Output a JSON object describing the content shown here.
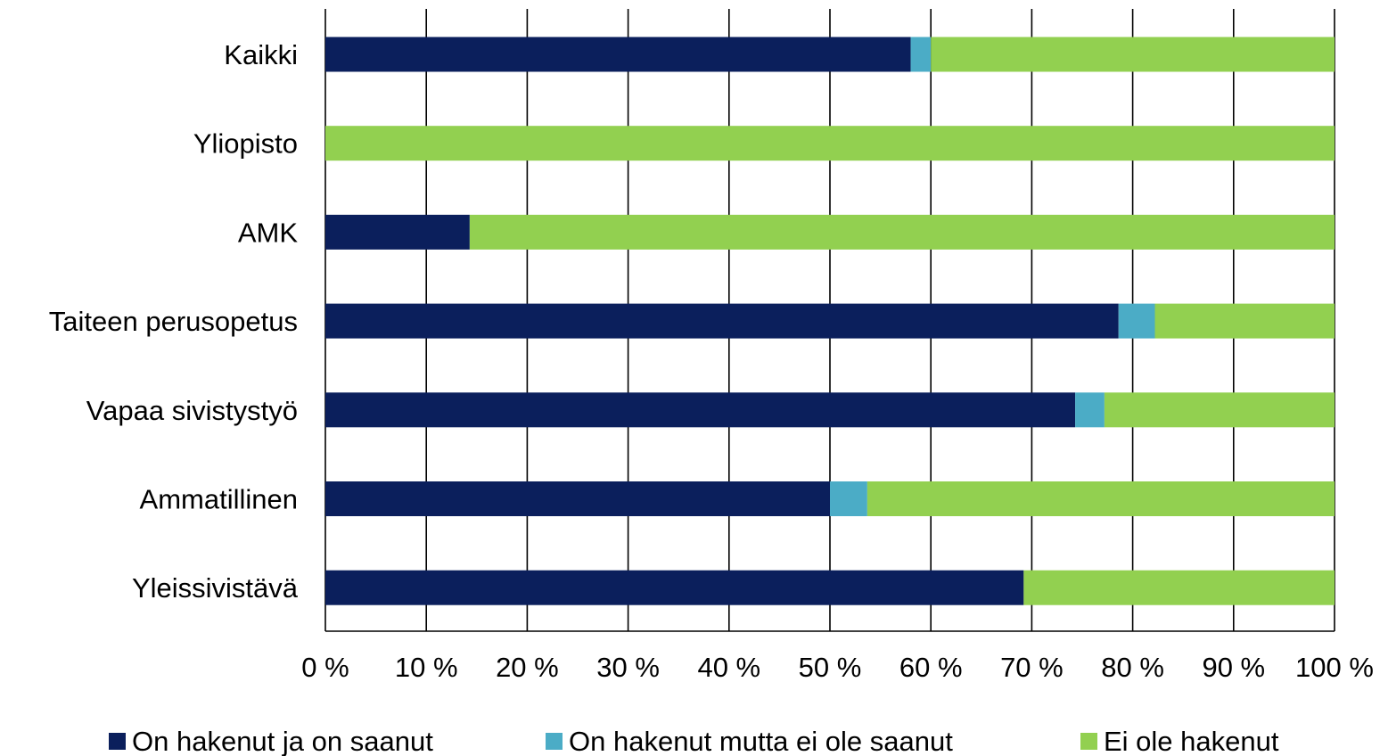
{
  "chart_data": {
    "type": "bar",
    "orientation": "horizontal",
    "stacked": true,
    "percent_stacked": true,
    "categories": [
      "Kaikki",
      "Yliopisto",
      "AMK",
      "Taiteen perusopetus",
      "Vapaa sivistystyö",
      "Ammatillinen",
      "Yleissivistävä"
    ],
    "series": [
      {
        "name": "On hakenut ja on saanut",
        "color": "#0b1f5c",
        "values": [
          58,
          0,
          14.3,
          78.6,
          74.3,
          50,
          69.2
        ]
      },
      {
        "name": "On hakenut mutta ei ole saanut",
        "color": "#4bacc6",
        "values": [
          2,
          0,
          0,
          3.6,
          2.9,
          3.7,
          0
        ]
      },
      {
        "name": "Ei ole hakenut",
        "color": "#92d050",
        "values": [
          40,
          100,
          85.7,
          17.8,
          22.8,
          46.3,
          30.8
        ]
      }
    ],
    "xlim": [
      0,
      100
    ],
    "x_ticks": [
      "0 %",
      "10 %",
      "20 %",
      "30 %",
      "40 %",
      "50 %",
      "60 %",
      "70 %",
      "80 %",
      "90 %",
      "100 %"
    ],
    "grid": "vertical",
    "legend_position": "bottom"
  }
}
